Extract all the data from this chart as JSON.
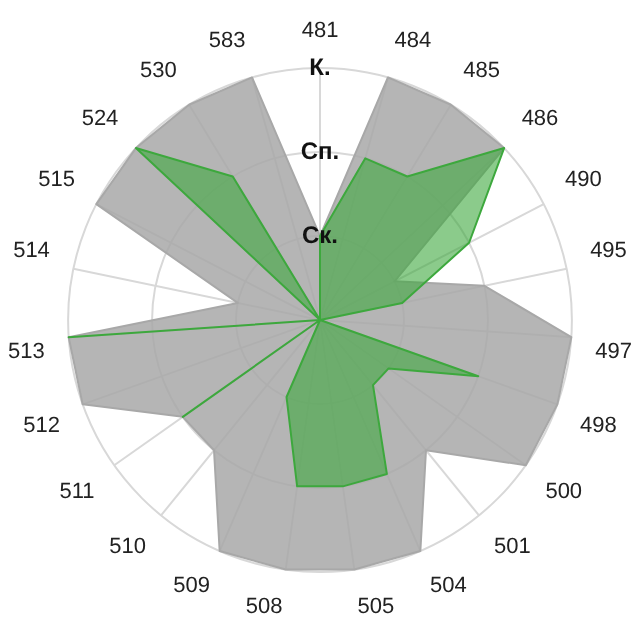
{
  "chart_data": {
    "type": "radar",
    "categories": [
      "481",
      "484",
      "485",
      "486",
      "490",
      "495",
      "497",
      "498",
      "500",
      "501",
      "504",
      "505",
      "508",
      "509",
      "510",
      "511",
      "512",
      "513",
      "514",
      "515",
      "524",
      "530",
      "583"
    ],
    "series": [
      {
        "color": "#a8a8a8",
        "values": [
          1,
          3,
          3,
          3,
          1,
          2,
          3,
          3,
          3,
          2,
          3,
          3,
          3,
          3,
          2,
          2,
          3,
          3,
          1,
          3,
          3,
          3,
          3
        ]
      },
      {
        "color": "#3da83d",
        "values": [
          1,
          2,
          2,
          3,
          2,
          1,
          0,
          2,
          1,
          1,
          2,
          2,
          2,
          1,
          0,
          2,
          0,
          3,
          0,
          0,
          3,
          2,
          0
        ]
      }
    ],
    "ylim": [
      0,
      3
    ],
    "yticks": [
      {
        "value": 1,
        "label": "Ск."
      },
      {
        "value": 2,
        "label": "Сп."
      },
      {
        "value": 3,
        "label": "К."
      }
    ],
    "grid": true,
    "legend": false,
    "marker": "none"
  }
}
